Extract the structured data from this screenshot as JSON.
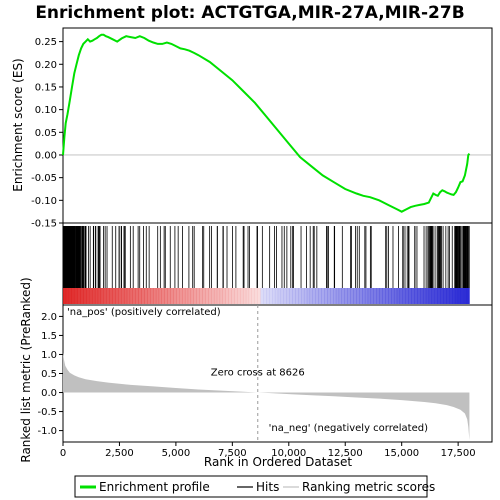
{
  "chart_data": {
    "type": "line",
    "title": "Enrichment plot: ACTGTGA,MIR-27A,MIR-27B",
    "top_panel": {
      "ylabel": "Enrichment score (ES)",
      "ylim": [
        -0.15,
        0.28
      ],
      "yticks": [
        -0.15,
        -0.1,
        -0.05,
        0.0,
        0.05,
        0.1,
        0.15,
        0.2,
        0.25
      ],
      "ytick_labels": [
        "-0.15",
        "-0.10",
        "-0.05",
        "0.00",
        "0.05",
        "0.10",
        "0.15",
        "0.20",
        "0.25"
      ],
      "grid": false,
      "series": [
        {
          "name": "Enrichment profile",
          "color": "#00e000",
          "x": [
            0,
            60,
            120,
            200,
            300,
            400,
            500,
            600,
            700,
            800,
            900,
            1000,
            1100,
            1200,
            1300,
            1400,
            1500,
            1600,
            1700,
            1800,
            1900,
            2000,
            2200,
            2400,
            2600,
            2800,
            3000,
            3200,
            3400,
            3600,
            3800,
            4000,
            4200,
            4400,
            4600,
            4800,
            5000,
            5200,
            5400,
            5600,
            5800,
            6000,
            6500,
            7000,
            7500,
            8000,
            8500,
            9000,
            9500,
            10000,
            10500,
            11000,
            11500,
            12000,
            12500,
            13000,
            13300,
            13600,
            14000,
            14400,
            14800,
            15000,
            15200,
            15400,
            15600,
            15800,
            16000,
            16200,
            16300,
            16400,
            16500,
            16600,
            16700,
            16800,
            16900,
            17000,
            17100,
            17200,
            17300,
            17400,
            17500,
            17600,
            17700,
            17800,
            17900,
            17950,
            18000
          ],
          "y": [
            0.0,
            0.04,
            0.07,
            0.09,
            0.12,
            0.15,
            0.18,
            0.2,
            0.22,
            0.235,
            0.245,
            0.25,
            0.255,
            0.25,
            0.252,
            0.255,
            0.258,
            0.262,
            0.265,
            0.265,
            0.262,
            0.26,
            0.255,
            0.25,
            0.257,
            0.262,
            0.26,
            0.258,
            0.262,
            0.258,
            0.252,
            0.248,
            0.245,
            0.245,
            0.248,
            0.245,
            0.24,
            0.235,
            0.233,
            0.23,
            0.225,
            0.22,
            0.205,
            0.185,
            0.165,
            0.14,
            0.115,
            0.085,
            0.055,
            0.025,
            -0.005,
            -0.025,
            -0.045,
            -0.06,
            -0.075,
            -0.085,
            -0.09,
            -0.093,
            -0.1,
            -0.11,
            -0.12,
            -0.125,
            -0.12,
            -0.115,
            -0.112,
            -0.11,
            -0.108,
            -0.105,
            -0.095,
            -0.085,
            -0.088,
            -0.09,
            -0.082,
            -0.078,
            -0.08,
            -0.083,
            -0.085,
            -0.087,
            -0.088,
            -0.082,
            -0.072,
            -0.06,
            -0.058,
            -0.045,
            -0.02,
            0.0,
            0.003
          ]
        }
      ]
    },
    "hits_panel": {
      "legend_label": "Hits",
      "color": "#000000"
    },
    "bottom_panel": {
      "ylabel": "Ranked list metric (PreRanked)",
      "xlabel": "Rank in Ordered Dataset",
      "ylim": [
        -1.3,
        2.3
      ],
      "yticks": [
        -1.0,
        -0.5,
        0.0,
        0.5,
        1.0,
        1.5,
        2.0
      ],
      "ytick_labels": [
        "-1.0",
        "-0.5",
        "0.0",
        "0.5",
        "1.0",
        "1.5",
        "2.0"
      ],
      "xlim": [
        0,
        19000
      ],
      "xticks": [
        0,
        2500,
        5000,
        7500,
        10000,
        12500,
        15000,
        17500
      ],
      "xtick_labels": [
        "0",
        "2,500",
        "5,000",
        "7,500",
        "10,000",
        "12,500",
        "15,000",
        "17,500"
      ],
      "legend_label": "Ranking metric scores",
      "fill_color": "#c0c0c0",
      "metric": {
        "x": [
          0,
          50,
          100,
          200,
          300,
          500,
          700,
          1000,
          1500,
          2000,
          2500,
          3000,
          4000,
          5000,
          6000,
          7000,
          8000,
          8626,
          9000,
          10000,
          11000,
          12000,
          13000,
          14000,
          15000,
          16000,
          16500,
          17000,
          17300,
          17600,
          17800,
          17900,
          17950,
          18000
        ],
        "y": [
          1.05,
          0.85,
          0.7,
          0.6,
          0.52,
          0.45,
          0.4,
          0.35,
          0.3,
          0.26,
          0.23,
          0.2,
          0.16,
          0.12,
          0.08,
          0.05,
          0.02,
          0.0,
          -0.01,
          -0.04,
          -0.07,
          -0.1,
          -0.13,
          -0.16,
          -0.2,
          -0.25,
          -0.28,
          -0.33,
          -0.38,
          -0.45,
          -0.55,
          -0.7,
          -0.9,
          -1.25
        ]
      },
      "zero_cross_label": "Zero cross at 8626",
      "zero_cross": 8626,
      "pos_label": "'na_pos' (positively correlated)",
      "neg_label": "'na_neg' (negatively correlated)",
      "pos_color": "#cc0000",
      "neg_color": "#0000cc"
    },
    "n_genes": 18000
  }
}
